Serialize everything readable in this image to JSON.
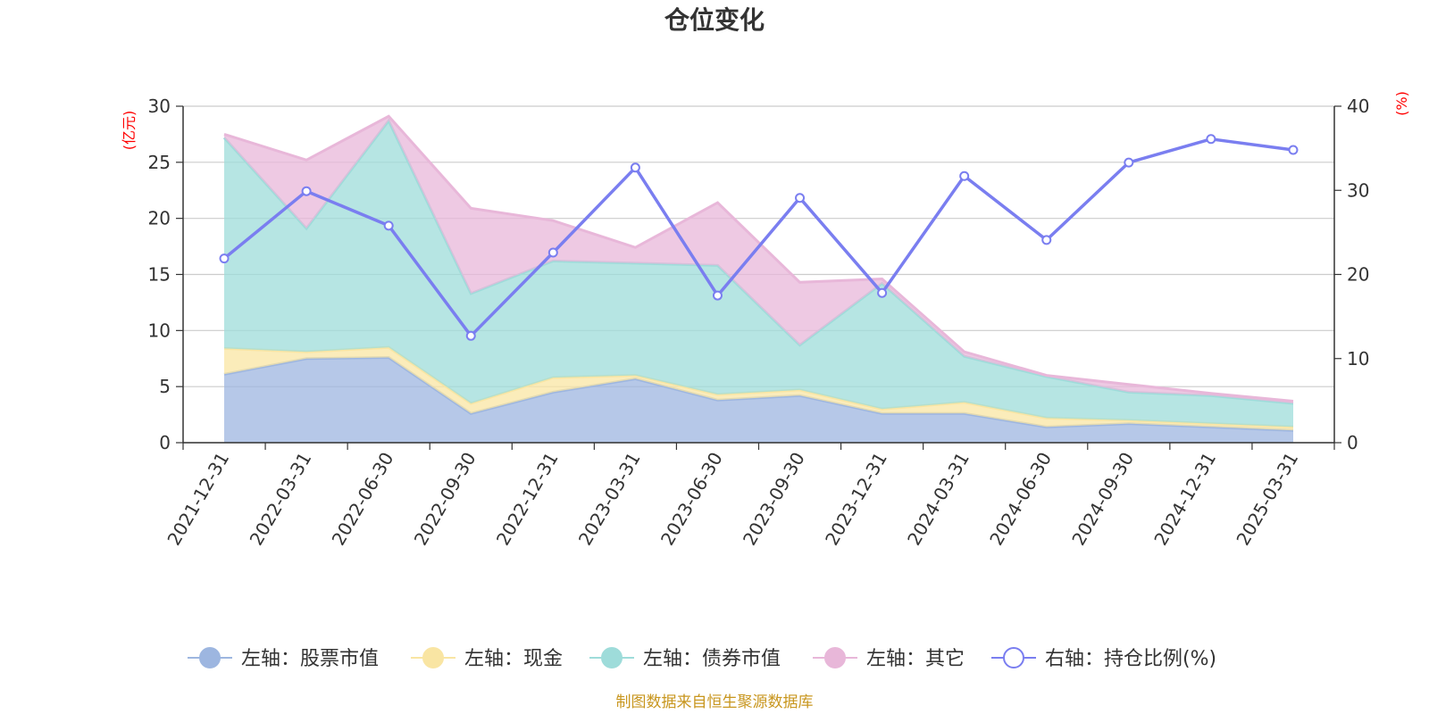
{
  "chart_data": {
    "type": "area",
    "title": "仓位变化",
    "left_axis": {
      "unit": "(亿元)",
      "ylim": [
        0,
        30
      ],
      "ticks": [
        "0",
        "5",
        "10",
        "15",
        "20",
        "25",
        "30"
      ]
    },
    "right_axis": {
      "unit": "(%)",
      "ylim": [
        0,
        40
      ],
      "ticks": [
        "0",
        "10",
        "20",
        "30",
        "40"
      ]
    },
    "categories": [
      "2021-12-31",
      "2022-03-31",
      "2022-06-30",
      "2022-09-30",
      "2022-12-31",
      "2023-03-31",
      "2023-06-30",
      "2023-09-30",
      "2023-12-31",
      "2024-03-31",
      "2024-06-30",
      "2024-09-30",
      "2024-12-31",
      "2025-03-31"
    ],
    "stacked_series": [
      {
        "name": "左轴：股票市值",
        "color": "#9db6e0",
        "values": [
          6.1,
          7.5,
          7.6,
          2.6,
          4.5,
          5.7,
          3.8,
          4.2,
          2.6,
          2.6,
          1.4,
          1.7,
          1.4,
          1.1
        ]
      },
      {
        "name": "左轴：现金",
        "color": "#f9e5a3",
        "values": [
          2.3,
          0.6,
          0.9,
          0.9,
          1.3,
          0.3,
          0.5,
          0.5,
          0.4,
          1.0,
          0.8,
          0.3,
          0.3,
          0.3
        ]
      },
      {
        "name": "左轴：债券市值",
        "color": "#9edcda",
        "values": [
          18.8,
          11.0,
          20.2,
          9.8,
          10.4,
          10.0,
          11.5,
          4.0,
          11.2,
          4.1,
          3.7,
          2.5,
          2.5,
          2.1
        ]
      },
      {
        "name": "左轴：其它",
        "color": "#e8b7d9",
        "values": [
          0.3,
          6.1,
          0.4,
          7.6,
          3.6,
          1.4,
          5.6,
          5.6,
          0.4,
          0.4,
          0.1,
          0.7,
          0.2,
          0.2
        ]
      }
    ],
    "line_series": {
      "name": "右轴：持仓比例(%)",
      "color": "#7a7ef0",
      "values": [
        21.9,
        29.9,
        25.8,
        12.7,
        22.6,
        32.7,
        17.5,
        29.1,
        17.8,
        31.7,
        24.1,
        33.3,
        36.1,
        34.8
      ]
    },
    "grid": true,
    "legend_position": "bottom"
  },
  "footer": "制图数据来自恒生聚源数据库"
}
